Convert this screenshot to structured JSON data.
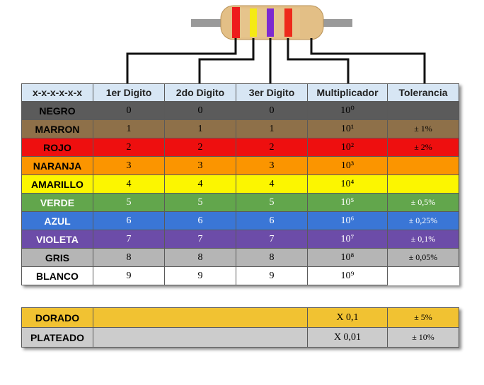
{
  "resistor": {
    "body_color": "#e3bf86",
    "bands": [
      "#ee1c1c",
      "#f5ea14",
      "#7d2ad0",
      "#ee2b1b"
    ]
  },
  "header": {
    "col0": "x-x-x-x-x-x",
    "col1": "1er Digito",
    "col2": "2do Digito",
    "col3": "3er Digito",
    "col4": "Multiplicador",
    "col5": "Tolerancia"
  },
  "rows": [
    {
      "name": "NEGRO",
      "d1": "0",
      "d2": "0",
      "d3": "0",
      "mult": "10⁰",
      "tol": "",
      "color": "#5b5b5b",
      "text": "#000000"
    },
    {
      "name": "MARRON",
      "d1": "1",
      "d2": "1",
      "d3": "1",
      "mult": "10¹",
      "tol": "± 1%",
      "color": "#8e7049",
      "text": "#000000"
    },
    {
      "name": "ROJO",
      "d1": "2",
      "d2": "2",
      "d3": "2",
      "mult": "10²",
      "tol": "± 2%",
      "color": "#ee0f0f",
      "text": "#000000"
    },
    {
      "name": "NARANJA",
      "d1": "3",
      "d2": "3",
      "d3": "3",
      "mult": "10³",
      "tol": "",
      "color": "#fb9500",
      "text": "#000000"
    },
    {
      "name": "AMARILLO",
      "d1": "4",
      "d2": "4",
      "d3": "4",
      "mult": "10⁴",
      "tol": "",
      "color": "#fcf600",
      "text": "#000000"
    },
    {
      "name": "VERDE",
      "d1": "5",
      "d2": "5",
      "d3": "5",
      "mult": "10⁵",
      "tol": "± 0,5%",
      "color": "#62a64c",
      "text": "#ffffff"
    },
    {
      "name": "AZUL",
      "d1": "6",
      "d2": "6",
      "d3": "6",
      "mult": "10⁶",
      "tol": "± 0,25%",
      "color": "#3a76d6",
      "text": "#ffffff"
    },
    {
      "name": "VIOLETA",
      "d1": "7",
      "d2": "7",
      "d3": "7",
      "mult": "10⁷",
      "tol": "± 0,1%",
      "color": "#6c4ca8",
      "text": "#ffffff"
    },
    {
      "name": "GRIS",
      "d1": "8",
      "d2": "8",
      "d3": "8",
      "mult": "10⁸",
      "tol": "± 0,05%",
      "color": "#b5b5b5",
      "text": "#000000"
    },
    {
      "name": "BLANCO",
      "d1": "9",
      "d2": "9",
      "d3": "9",
      "mult": "10⁹",
      "tol": null,
      "color": "#ffffff",
      "text": "#000000"
    }
  ],
  "extra_rows": [
    {
      "name": "DORADO",
      "mult": "X 0,1",
      "tol": "± 5%",
      "color": "#f1c232"
    },
    {
      "name": "PLATEADO",
      "mult": "X 0,01",
      "tol": "± 10%",
      "color": "#cccccc"
    }
  ]
}
